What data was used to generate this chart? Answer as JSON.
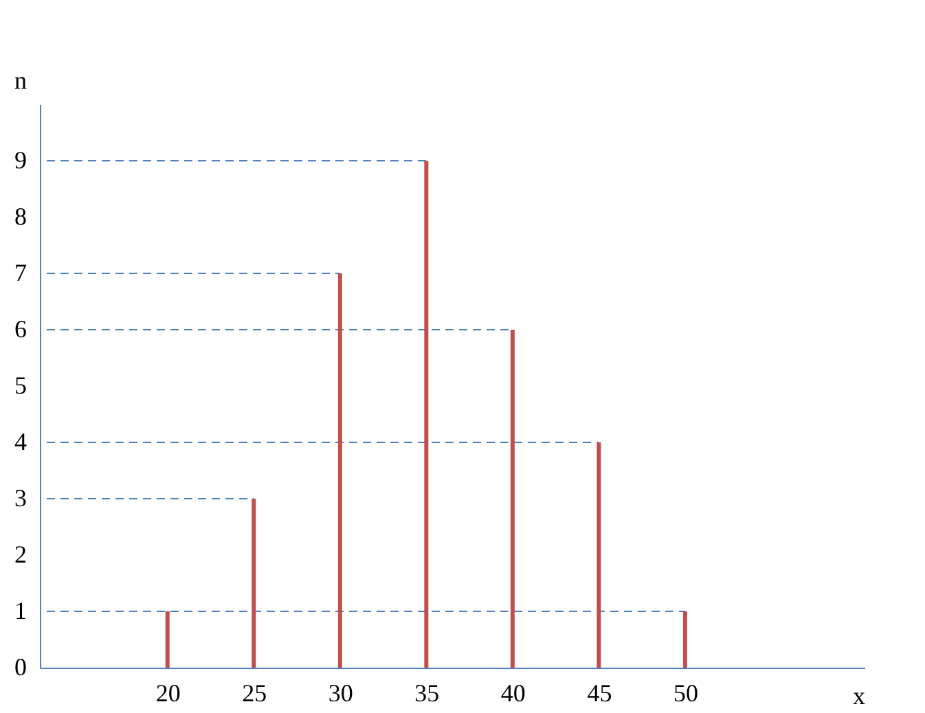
{
  "chart_data": {
    "type": "bar",
    "xlabel": "x",
    "ylabel": "n",
    "x": [
      20,
      25,
      30,
      35,
      40,
      45,
      50
    ],
    "series": [
      {
        "color": "#c0504d",
        "values": [
          1,
          3,
          7,
          9,
          6,
          4,
          1
        ]
      }
    ],
    "xlim": [
      13,
      60
    ],
    "xticks": [
      20,
      25,
      30,
      35,
      40,
      45,
      50
    ],
    "ylim": [
      0,
      10
    ],
    "yticks": [
      0,
      1,
      2,
      3,
      4,
      5,
      6,
      7,
      8,
      9
    ],
    "ref_lines": [
      {
        "axis": "y",
        "value": 1,
        "color": "#4f81bd",
        "line_style": "dashed"
      },
      {
        "axis": "y",
        "value": 3,
        "color": "#4f81bd",
        "line_style": "dashed"
      },
      {
        "axis": "y",
        "value": 4,
        "color": "#4f81bd",
        "line_style": "dashed"
      },
      {
        "axis": "y",
        "value": 6,
        "color": "#4f81bd",
        "line_style": "dashed"
      },
      {
        "axis": "y",
        "value": 7,
        "color": "#4f81bd",
        "line_style": "dashed"
      },
      {
        "axis": "y",
        "value": 9,
        "color": "#4f81bd",
        "line_style": "dashed"
      }
    ],
    "grid": false
  }
}
